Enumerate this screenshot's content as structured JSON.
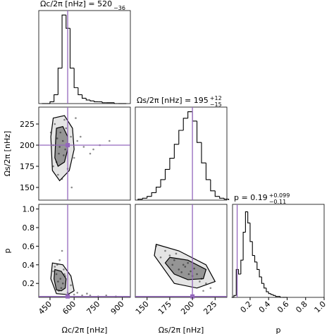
{
  "chart_data": [
    {
      "type": "histogram",
      "title": "Ωc/2π [nHz] = 520",
      "title_sub": "−36",
      "bins": [
        400,
        425,
        450,
        475,
        500,
        525,
        550,
        575,
        600,
        625,
        650,
        675,
        700,
        725,
        750,
        775,
        800,
        825,
        850,
        875,
        900,
        925
      ],
      "counts": [
        0,
        0,
        2,
        10,
        40,
        100,
        85,
        40,
        18,
        10,
        6,
        4,
        3,
        2,
        2,
        1,
        1,
        1,
        0,
        0,
        0
      ],
      "xlim": [
        380,
        950
      ],
      "ylim": [
        0,
        105
      ],
      "truth": 560,
      "color": "#000000",
      "truth_color": "#9467bd"
    },
    {
      "type": "scatter",
      "xlim": [
        380,
        950
      ],
      "ylim": [
        135,
        245
      ],
      "yticks": [
        150,
        175,
        200,
        225
      ],
      "ylabel": "Ωs/2π [nHz]",
      "x": [
        470,
        505,
        530,
        515,
        490,
        545,
        560,
        580,
        620,
        660,
        700,
        760,
        480,
        500,
        525,
        540,
        455,
        600,
        640,
        720,
        820,
        510,
        535,
        495,
        550,
        470,
        585,
        610
      ],
      "y": [
        200,
        190,
        205,
        215,
        180,
        195,
        172,
        210,
        205,
        198,
        190,
        200,
        225,
        165,
        160,
        230,
        215,
        185,
        210,
        195,
        205,
        198,
        188,
        208,
        220,
        175,
        150,
        232
      ],
      "contours": [
        {
          "x": [
            490,
            530,
            560,
            560,
            540,
            500,
            480,
            485
          ],
          "y": [
            220,
            222,
            210,
            195,
            180,
            175,
            185,
            205
          ]
        },
        {
          "x": [
            470,
            540,
            590,
            600,
            570,
            510,
            465,
            455
          ],
          "y": [
            232,
            235,
            220,
            195,
            170,
            158,
            170,
            210
          ]
        }
      ],
      "truth_x": 560,
      "truth_y": 200,
      "color": "#000000",
      "truth_color": "#9467bd"
    },
    {
      "type": "histogram",
      "title": "Ωs/2π [nHz] = 195",
      "title_sup": "+12",
      "title_sub": "−15",
      "bins": [
        140,
        145,
        150,
        155,
        160,
        165,
        170,
        175,
        180,
        185,
        190,
        195,
        200,
        205,
        210,
        215,
        220,
        225,
        230,
        235,
        240
      ],
      "counts": [
        1,
        2,
        4,
        8,
        14,
        22,
        33,
        45,
        60,
        75,
        88,
        95,
        85,
        62,
        40,
        22,
        10,
        4,
        2,
        1
      ],
      "xlim": [
        137,
        238
      ],
      "ylim": [
        0,
        100
      ],
      "truth": 200,
      "color": "#000000",
      "truth_color": "#9467bd"
    },
    {
      "type": "scatter",
      "xlim": [
        380,
        950
      ],
      "ylim": [
        0.05,
        1.05
      ],
      "yticks": [
        0.2,
        0.4,
        0.6,
        0.8,
        {
          "value": 1,
          "label": "1.0"
        }
      ],
      "ylabel": "p",
      "xticks": [
        450,
        600,
        750,
        900
      ],
      "xlabel": "Ωc/2π [nHz]",
      "x": [
        500,
        515,
        530,
        490,
        520,
        545,
        480,
        560,
        600,
        650,
        700,
        750,
        800,
        860,
        510,
        470,
        535,
        580,
        620,
        525,
        505,
        495,
        540,
        680
      ],
      "y": [
        0.22,
        0.25,
        0.2,
        0.3,
        0.15,
        0.28,
        0.38,
        0.1,
        0.08,
        0.07,
        0.07,
        0.06,
        0.07,
        0.06,
        0.45,
        0.33,
        0.35,
        0.18,
        0.1,
        0.55,
        0.12,
        0.4,
        0.3,
        0.09
      ],
      "contours": [
        {
          "x": [
            480,
            520,
            550,
            545,
            520,
            490,
            475
          ],
          "y": [
            0.35,
            0.33,
            0.25,
            0.15,
            0.12,
            0.13,
            0.25
          ]
        },
        {
          "x": [
            465,
            530,
            580,
            600,
            560,
            490,
            455
          ],
          "y": [
            0.42,
            0.4,
            0.28,
            0.12,
            0.08,
            0.09,
            0.25
          ]
        }
      ],
      "truth_x": 560,
      "truth_y": 0.06,
      "color": "#000000",
      "truth_color": "#9467bd"
    },
    {
      "type": "scatter",
      "xlim": [
        137,
        238
      ],
      "ylim": [
        0.05,
        1.05
      ],
      "xticks": [
        150,
        175,
        200,
        225
      ],
      "xlabel": "Ωs/2π [nHz]",
      "x": [
        185,
        192,
        198,
        190,
        200,
        205,
        180,
        175,
        170,
        160,
        210,
        215,
        195,
        188,
        202,
        165,
        220,
        182,
        208,
        196,
        178,
        212
      ],
      "y": [
        0.35,
        0.38,
        0.33,
        0.4,
        0.28,
        0.3,
        0.45,
        0.5,
        0.55,
        0.6,
        0.25,
        0.2,
        0.42,
        0.32,
        0.36,
        0.48,
        0.15,
        0.52,
        0.22,
        0.3,
        0.4,
        0.12
      ],
      "contours": [
        {
          "x": [
            175,
            195,
            215,
            212,
            195,
            180,
            170
          ],
          "y": [
            0.48,
            0.45,
            0.35,
            0.25,
            0.24,
            0.3,
            0.42
          ]
        },
        {
          "x": [
            160,
            185,
            215,
            225,
            205,
            180,
            158
          ],
          "y": [
            0.62,
            0.55,
            0.4,
            0.22,
            0.15,
            0.2,
            0.5
          ]
        }
      ],
      "truth_x": 200,
      "truth_y": 0.06,
      "color": "#000000",
      "truth_color": "#9467bd"
    },
    {
      "type": "histogram",
      "title": "p = 0.19",
      "title_sup": "+0.099",
      "title_sub": "−0.11",
      "bins": [
        0,
        0.025,
        0.05,
        0.075,
        0.1,
        0.125,
        0.15,
        0.175,
        0.2,
        0.225,
        0.25,
        0.275,
        0.3,
        0.325,
        0.35,
        0.375,
        0.4,
        0.425,
        0.45,
        0.475,
        0.5,
        0.525,
        0.55,
        0.575,
        0.6
      ],
      "counts": [
        0,
        2,
        30,
        25,
        40,
        70,
        92,
        80,
        60,
        45,
        38,
        30,
        22,
        15,
        10,
        6,
        4,
        3,
        2,
        1,
        1,
        0,
        0,
        0
      ],
      "xlim": [
        0.01,
        1.0
      ],
      "ylim": [
        0,
        100
      ],
      "xticks": [
        0.2,
        0.4,
        0.6,
        0.8,
        {
          "value": 1,
          "label": "1.0"
        }
      ],
      "xlabel": "p",
      "truth": 0.06,
      "color": "#000000",
      "truth_color": "#9467bd"
    }
  ]
}
